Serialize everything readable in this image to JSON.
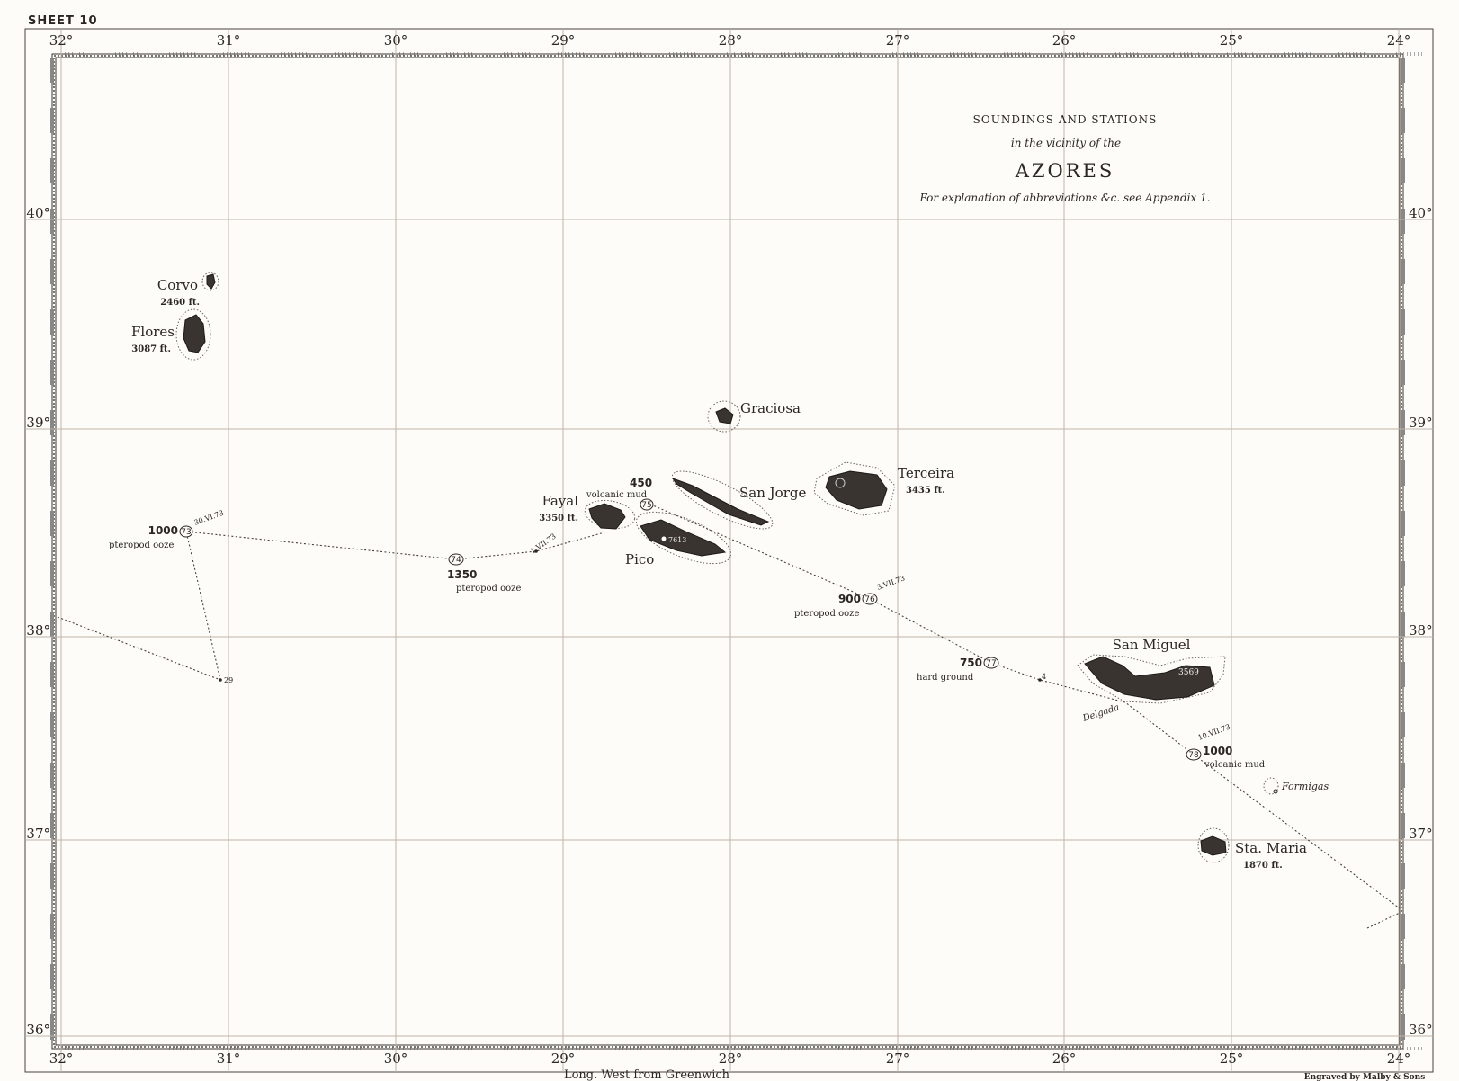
{
  "sheet_label": "SHEET 10",
  "title": {
    "line1": "SOUNDINGS AND STATIONS",
    "line2": "in the vicinity of the",
    "line3": "AZORES",
    "line4": "For explanation of abbreviations &c. see Appendix 1."
  },
  "longitude_labels": [
    "32°",
    "31°",
    "30°",
    "29°",
    "28°",
    "27°",
    "26°",
    "25°",
    "24°"
  ],
  "latitude_labels": [
    "40°",
    "39°",
    "38°",
    "37°",
    "36°"
  ],
  "bottom_caption": "Long. West from Greenwich",
  "engraver": "Engraved by Malby & Sons",
  "islands": {
    "corvo": {
      "name": "Corvo",
      "height": "2460 ft."
    },
    "flores": {
      "name": "Flores",
      "height": "3087 ft."
    },
    "graciosa": {
      "name": "Graciosa"
    },
    "san_jorge": {
      "name": "San Jorge"
    },
    "terceira": {
      "name": "Terceira",
      "height": "3435 ft."
    },
    "fayal": {
      "name": "Fayal",
      "height": "3350 ft."
    },
    "pico": {
      "name": "Pico",
      "height": "7613"
    },
    "san_miguel": {
      "name": "San Miguel",
      "height": "3569",
      "port": "Delgada"
    },
    "formigas": {
      "name": "Formigas"
    },
    "santa_maria": {
      "name": "Sta. Maria",
      "height": "1870 ft."
    }
  },
  "stations": [
    {
      "number": "73",
      "depth": "1000",
      "bottom": "pteropod ooze",
      "date": "30.VI.73"
    },
    {
      "number": "74",
      "depth": "1350",
      "bottom": "pteropod ooze"
    },
    {
      "number": "75",
      "depth": "450",
      "bottom": "volcanic mud"
    },
    {
      "number": "76",
      "depth": "900",
      "bottom": "pteropod ooze",
      "date": "3.VII.73"
    },
    {
      "number": "77",
      "depth": "750",
      "bottom": "hard ground"
    },
    {
      "number": "78",
      "depth": "1000",
      "bottom": "volcanic mud",
      "date": "10.VII.73"
    }
  ],
  "track_marks": {
    "date_1": "1.VII.73",
    "day_29": "29",
    "day_4": "4"
  },
  "colors": {
    "paper": "#fdfcf9",
    "ink": "#2a2622",
    "grid": "#bfb3a8"
  }
}
